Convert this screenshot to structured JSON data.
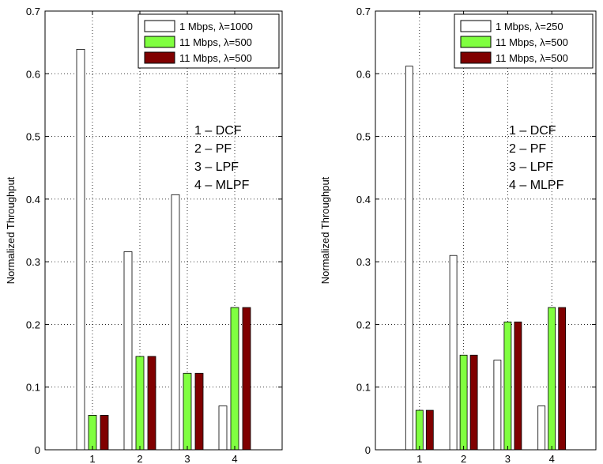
{
  "chart_data": [
    {
      "type": "bar",
      "title": "",
      "xlabel": "",
      "ylabel": "Normalized Throughput",
      "categories": [
        "1",
        "2",
        "3",
        "4"
      ],
      "ylim": [
        0,
        0.7
      ],
      "yticks": [
        "0",
        "0.1",
        "0.2",
        "0.3",
        "0.4",
        "0.5",
        "0.6",
        "0.7"
      ],
      "grid": true,
      "legend_position": "top-right",
      "series": [
        {
          "name": "1 Mbps, λ=1000",
          "color": "#ffffff",
          "values": [
            0.639,
            0.316,
            0.407,
            0.07
          ]
        },
        {
          "name": "11 Mbps, λ=500",
          "color": "#80ff40",
          "values": [
            0.055,
            0.149,
            0.122,
            0.227
          ]
        },
        {
          "name": "11 Mbps, λ=500",
          "color": "#800000",
          "values": [
            0.055,
            0.149,
            0.122,
            0.227
          ]
        }
      ],
      "annotations": [
        "1 – DCF",
        "2 – PF",
        "3 – LPF",
        "4 – MLPF"
      ]
    },
    {
      "type": "bar",
      "title": "",
      "xlabel": "",
      "ylabel": "Normalized Throughput",
      "categories": [
        "1",
        "2",
        "3",
        "4"
      ],
      "ylim": [
        0,
        0.7
      ],
      "yticks": [
        "0",
        "0.1",
        "0.2",
        "0.3",
        "0.4",
        "0.5",
        "0.6",
        "0.7"
      ],
      "grid": true,
      "legend_position": "top-right",
      "series": [
        {
          "name": "1 Mbps, λ=250",
          "color": "#ffffff",
          "values": [
            0.612,
            0.31,
            0.143,
            0.07
          ]
        },
        {
          "name": "11 Mbps, λ=500",
          "color": "#80ff40",
          "values": [
            0.063,
            0.151,
            0.204,
            0.227
          ]
        },
        {
          "name": "11 Mbps, λ=500",
          "color": "#800000",
          "values": [
            0.063,
            0.151,
            0.204,
            0.227
          ]
        }
      ],
      "annotations": [
        "1 – DCF",
        "2 – PF",
        "3 – LPF",
        "4 – MLPF"
      ]
    }
  ]
}
